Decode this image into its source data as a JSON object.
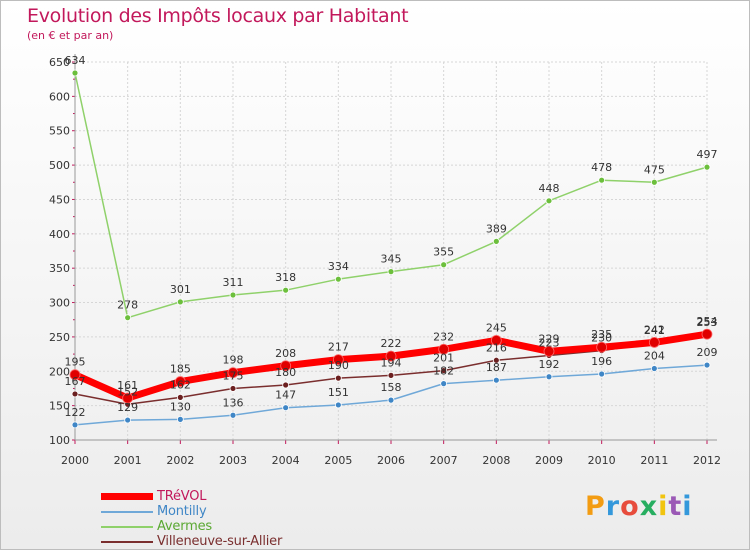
{
  "title": "Evolution des Impôts locaux par Habitant",
  "subtitle": "(en € et par an)",
  "logo": {
    "letters": [
      "P",
      "r",
      "o",
      "x",
      "i",
      "t",
      "i"
    ],
    "colors": [
      "#f39c12",
      "#3498db",
      "#e74c3c",
      "#27ae60",
      "#f1c40f",
      "#9b59b6",
      "#3498db"
    ]
  },
  "chart_data": {
    "type": "line",
    "x": [
      "2000",
      "2001",
      "2002",
      "2003",
      "2004",
      "2005",
      "2006",
      "2007",
      "2008",
      "2009",
      "2010",
      "2011",
      "2012"
    ],
    "ylim": [
      100,
      650
    ],
    "yticks": [
      "100",
      "150",
      "200",
      "250",
      "300",
      "350",
      "400",
      "450",
      "500",
      "550",
      "600",
      "650"
    ],
    "grid": true,
    "legend_position": "bottom-left",
    "series": [
      {
        "name": "Avermes",
        "color": "#8fd16a",
        "marker": "#6cbf3c",
        "width": 1.5,
        "values": [
          634,
          278,
          301,
          311,
          318,
          334,
          345,
          355,
          389,
          448,
          478,
          475,
          497
        ],
        "labels": [
          "634",
          "278",
          "301",
          "311",
          "318",
          "334",
          "345",
          "355",
          "389",
          "448",
          "478",
          "475",
          "497"
        ]
      },
      {
        "name": "Montilly",
        "color": "#6fa8d8",
        "marker": "#3f86c6",
        "width": 1.5,
        "values": [
          122,
          129,
          130,
          136,
          147,
          151,
          158,
          182,
          187,
          192,
          196,
          204,
          209
        ],
        "labels": [
          "122",
          "129",
          "130",
          "136",
          "147",
          "151",
          "158",
          "182",
          "187",
          "192",
          "196",
          "204",
          "209"
        ]
      },
      {
        "name": "Villeneuve-sur-Allier",
        "color": "#7a2e2e",
        "marker": "#6b1f1f",
        "width": 1.5,
        "values": [
          167,
          152,
          162,
          175,
          180,
          190,
          194,
          201,
          216,
          223,
          230,
          241,
          253
        ],
        "labels": [
          "167",
          "152",
          "162",
          "175",
          "180",
          "190",
          "194",
          "201",
          "216",
          "223",
          "230",
          "241",
          "253"
        ]
      },
      {
        "name": "TRéVOL",
        "color": "#ff0000",
        "marker": "#e00000",
        "width": 7,
        "values": [
          195,
          161,
          185,
          198,
          208,
          217,
          222,
          232,
          245,
          229,
          235,
          242,
          254
        ],
        "labels": [
          "195",
          "161",
          "185",
          "198",
          "208",
          "217",
          "222",
          "232",
          "245",
          "229",
          "235",
          "242",
          "254"
        ]
      }
    ],
    "legend_order": [
      "TRéVOL",
      "Montilly",
      "Avermes",
      "Villeneuve-sur-Allier"
    ]
  }
}
